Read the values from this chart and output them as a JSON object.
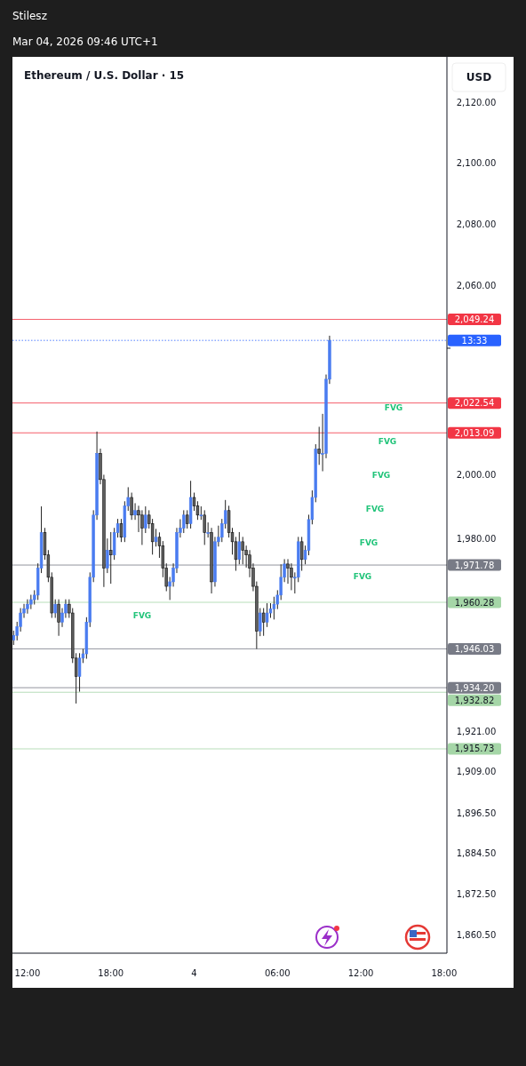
{
  "chart_data": {
    "type": "candlestick",
    "title": "Ethereum / U.S. Dollar · 15",
    "subtitle": "Mar 04, 2026 09:46 UTC+1",
    "ylabel": "USD",
    "annotations": [
      "Stilesz",
      "FVG",
      "FVG",
      "FVG",
      "FVG",
      "FVG",
      "FVG",
      "FVG",
      "13:33"
    ],
    "x": [
      "2026-03-03T11:00",
      "2026-03-03T11:15",
      "2026-03-03T11:30",
      "2026-03-03T11:45",
      "2026-03-03T12:00",
      "2026-03-03T12:15",
      "2026-03-03T12:30",
      "2026-03-03T12:45",
      "2026-03-03T13:00",
      "2026-03-03T13:15",
      "2026-03-03T13:30",
      "2026-03-03T13:45",
      "2026-03-03T14:00",
      "2026-03-03T14:15",
      "2026-03-03T14:30",
      "2026-03-03T14:45",
      "2026-03-03T15:00",
      "2026-03-03T15:15",
      "2026-03-03T15:30",
      "2026-03-03T15:45",
      "2026-03-03T16:00",
      "2026-03-03T16:15",
      "2026-03-03T16:30",
      "2026-03-03T16:45",
      "2026-03-03T17:00",
      "2026-03-03T17:15",
      "2026-03-03T17:30",
      "2026-03-03T17:45",
      "2026-03-03T18:00",
      "2026-03-03T18:15",
      "2026-03-03T18:30",
      "2026-03-03T18:45",
      "2026-03-03T19:00",
      "2026-03-03T19:15",
      "2026-03-03T19:30",
      "2026-03-03T19:45",
      "2026-03-03T20:00",
      "2026-03-03T20:15",
      "2026-03-03T20:30",
      "2026-03-03T20:45",
      "2026-03-03T21:00",
      "2026-03-03T21:15",
      "2026-03-03T21:30",
      "2026-03-03T21:45",
      "2026-03-03T22:00",
      "2026-03-03T22:15",
      "2026-03-03T22:30",
      "2026-03-03T22:45",
      "2026-03-03T23:00",
      "2026-03-03T23:15",
      "2026-03-03T23:30",
      "2026-03-03T23:45",
      "2026-03-04T00:00",
      "2026-03-04T00:15",
      "2026-03-04T00:30",
      "2026-03-04T00:45",
      "2026-03-04T01:00",
      "2026-03-04T01:15",
      "2026-03-04T01:30",
      "2026-03-04T01:45",
      "2026-03-04T02:00",
      "2026-03-04T02:15",
      "2026-03-04T02:30",
      "2026-03-04T02:45",
      "2026-03-04T03:00",
      "2026-03-04T03:15",
      "2026-03-04T03:30",
      "2026-03-04T03:45",
      "2026-03-04T04:00",
      "2026-03-04T04:15",
      "2026-03-04T04:30",
      "2026-03-04T04:45",
      "2026-03-04T05:00",
      "2026-03-04T05:15",
      "2026-03-04T05:30",
      "2026-03-04T05:45",
      "2026-03-04T06:00",
      "2026-03-04T06:15",
      "2026-03-04T06:30",
      "2026-03-04T06:45",
      "2026-03-04T07:00",
      "2026-03-04T07:15",
      "2026-03-04T07:30",
      "2026-03-04T07:45",
      "2026-03-04T08:00",
      "2026-03-04T08:15",
      "2026-03-04T08:30",
      "2026-03-04T08:45",
      "2026-03-04T09:00",
      "2026-03-04T09:15",
      "2026-03-04T09:30",
      "2026-03-04T09:45"
    ],
    "ohlc": [
      [
        1948.7,
        1951.6,
        1947.2,
        1950.1
      ],
      [
        1950.1,
        1954.3,
        1948.6,
        1952.8
      ],
      [
        1952.8,
        1958.5,
        1951.3,
        1957.0
      ],
      [
        1957.0,
        1959.8,
        1955.5,
        1958.3
      ],
      [
        1958.3,
        1961.2,
        1956.8,
        1959.7
      ],
      [
        1959.7,
        1962.6,
        1958.2,
        1961.1
      ],
      [
        1961.1,
        1964.0,
        1959.6,
        1962.5
      ],
      [
        1962.5,
        1972.3,
        1961.0,
        1970.8
      ],
      [
        1970.8,
        1990.0,
        1969.3,
        1981.8
      ],
      [
        1981.8,
        1983.3,
        1973.4,
        1974.9
      ],
      [
        1974.9,
        1976.4,
        1966.5,
        1968.0
      ],
      [
        1968.0,
        1969.5,
        1955.5,
        1957.0
      ],
      [
        1957.0,
        1961.2,
        1955.5,
        1959.7
      ],
      [
        1959.7,
        1961.2,
        1950.0,
        1954.2
      ],
      [
        1954.2,
        1958.5,
        1952.7,
        1957.0
      ],
      [
        1957.0,
        1961.2,
        1955.5,
        1959.7
      ],
      [
        1959.7,
        1961.2,
        1955.5,
        1957.0
      ],
      [
        1957.0,
        1958.5,
        1941.7,
        1943.2
      ],
      [
        1943.2,
        1944.7,
        1929.4,
        1937.6
      ],
      [
        1937.6,
        1944.7,
        1933.0,
        1943.2
      ],
      [
        1943.2,
        1946.0,
        1941.7,
        1944.5
      ],
      [
        1944.5,
        1955.7,
        1943.0,
        1954.2
      ],
      [
        1954.2,
        1969.5,
        1952.7,
        1968.0
      ],
      [
        1968.0,
        1988.8,
        1966.5,
        1987.3
      ],
      [
        1987.3,
        2013.5,
        1985.8,
        2006.6
      ],
      [
        2006.6,
        2008.1,
        1996.9,
        1998.4
      ],
      [
        1998.4,
        1999.9,
        1965.0,
        1970.8
      ],
      [
        1970.8,
        1980.0,
        1969.3,
        1976.3
      ],
      [
        1976.3,
        1982.0,
        1966.0,
        1974.9
      ],
      [
        1974.9,
        1983.3,
        1973.4,
        1981.8
      ],
      [
        1981.8,
        1986.1,
        1980.3,
        1984.6
      ],
      [
        1984.6,
        1986.1,
        1978.9,
        1980.4
      ],
      [
        1980.4,
        1991.6,
        1978.9,
        1990.1
      ],
      [
        1990.1,
        1996.0,
        1988.6,
        1992.8
      ],
      [
        1992.8,
        1994.3,
        1985.8,
        1987.3
      ],
      [
        1987.3,
        1991.0,
        1985.8,
        1988.7
      ],
      [
        1988.7,
        1990.2,
        1982.0,
        1987.3
      ],
      [
        1987.3,
        1988.8,
        1978.0,
        1983.2
      ],
      [
        1983.2,
        1990.0,
        1981.7,
        1987.3
      ],
      [
        1987.3,
        1988.8,
        1983.1,
        1984.6
      ],
      [
        1984.6,
        1986.1,
        1975.0,
        1979.0
      ],
      [
        1979.0,
        1983.0,
        1977.5,
        1980.4
      ],
      [
        1980.4,
        1981.9,
        1974.0,
        1977.7
      ],
      [
        1977.7,
        1979.2,
        1968.0,
        1970.8
      ],
      [
        1970.8,
        1972.3,
        1963.7,
        1965.2
      ],
      [
        1965.2,
        1968.1,
        1961.0,
        1966.6
      ],
      [
        1966.6,
        1972.3,
        1965.1,
        1970.8
      ],
      [
        1970.8,
        1983.3,
        1969.3,
        1981.8
      ],
      [
        1981.8,
        1986.0,
        1980.3,
        1983.2
      ],
      [
        1983.2,
        1988.8,
        1981.7,
        1987.3
      ],
      [
        1987.3,
        1988.8,
        1983.1,
        1984.6
      ],
      [
        1984.6,
        1998.0,
        1983.1,
        1992.8
      ],
      [
        1992.8,
        1994.3,
        1988.6,
        1990.1
      ],
      [
        1990.1,
        1991.6,
        1985.8,
        1987.3
      ],
      [
        1987.3,
        1990.0,
        1985.8,
        1987.3
      ],
      [
        1987.3,
        1988.8,
        1978.0,
        1981.8
      ],
      [
        1981.8,
        1985.0,
        1980.3,
        1981.8
      ],
      [
        1981.8,
        1983.3,
        1963.0,
        1966.6
      ],
      [
        1966.6,
        1980.5,
        1965.1,
        1979.0
      ],
      [
        1979.0,
        1984.0,
        1977.5,
        1980.4
      ],
      [
        1980.4,
        1986.1,
        1978.9,
        1984.6
      ],
      [
        1984.6,
        1992.0,
        1983.1,
        1988.7
      ],
      [
        1988.7,
        1990.2,
        1980.3,
        1981.8
      ],
      [
        1981.8,
        1983.3,
        1975.0,
        1979.0
      ],
      [
        1979.0,
        1980.5,
        1970.0,
        1973.5
      ],
      [
        1973.5,
        1982.0,
        1972.0,
        1979.0
      ],
      [
        1979.0,
        1980.5,
        1972.0,
        1976.3
      ],
      [
        1976.3,
        1977.8,
        1971.0,
        1974.9
      ],
      [
        1974.9,
        1976.4,
        1968.0,
        1970.8
      ],
      [
        1970.8,
        1972.3,
        1963.7,
        1965.2
      ],
      [
        1965.2,
        1966.7,
        1946.0,
        1951.4
      ],
      [
        1951.4,
        1958.5,
        1949.9,
        1957.0
      ],
      [
        1957.0,
        1958.5,
        1950.0,
        1954.2
      ],
      [
        1954.2,
        1960.0,
        1952.7,
        1957.0
      ],
      [
        1957.0,
        1960.0,
        1955.5,
        1958.3
      ],
      [
        1958.3,
        1962.0,
        1955.0,
        1959.7
      ],
      [
        1959.7,
        1964.0,
        1958.2,
        1962.5
      ],
      [
        1962.5,
        1972.0,
        1961.0,
        1968.0
      ],
      [
        1968.0,
        1973.6,
        1966.5,
        1972.1
      ],
      [
        1972.1,
        1973.6,
        1966.0,
        1970.8
      ],
      [
        1970.8,
        1972.3,
        1964.0,
        1968.0
      ],
      [
        1968.0,
        1969.5,
        1963.0,
        1968.0
      ],
      [
        1968.0,
        1980.5,
        1966.5,
        1979.0
      ],
      [
        1979.0,
        1980.5,
        1970.0,
        1973.5
      ],
      [
        1973.5,
        1977.8,
        1972.0,
        1976.3
      ],
      [
        1976.3,
        1987.4,
        1974.8,
        1985.9
      ],
      [
        1985.9,
        1995.0,
        1984.4,
        1992.8
      ],
      [
        1992.8,
        2009.5,
        1991.3,
        2008.0
      ],
      [
        2008.0,
        2015.0,
        2003.0,
        2006.6
      ],
      [
        2006.6,
        2019.1,
        2001.0,
        2006.6
      ],
      [
        2006.6,
        2031.6,
        2005.1,
        2030.1
      ],
      [
        2030.1,
        2044.0,
        2028.6,
        2042.5
      ]
    ],
    "xlim": [
      "2026-03-03T10:55",
      "2026-03-04T18:12"
    ],
    "xticks": [
      {
        "value": "2026-03-03T12:00",
        "label": "12:00"
      },
      {
        "value": "2026-03-03T18:00",
        "label": "18:00"
      },
      {
        "value": "2026-03-04T00:00",
        "label": "4"
      },
      {
        "value": "2026-03-04T06:00",
        "label": "06:00"
      },
      {
        "value": "2026-03-04T12:00",
        "label": "12:00"
      },
      {
        "value": "2026-03-04T18:00",
        "label": "18:00"
      }
    ],
    "ylim": [
      1855.3,
      2135.4
    ],
    "yticks": [
      {
        "value": 2120,
        "label": "2,120.00"
      },
      {
        "value": 2100,
        "label": "2,100.00"
      },
      {
        "value": 2080,
        "label": "2,080.00"
      },
      {
        "value": 2060,
        "label": "2,060.00"
      },
      {
        "value": 2040,
        "label": null
      },
      {
        "value": 2000,
        "label": "2,000.00"
      },
      {
        "value": 1980,
        "label": "1,980.00"
      },
      {
        "value": 1921,
        "label": "1,921.00"
      },
      {
        "value": 1909,
        "label": "1,909.00"
      },
      {
        "value": 1896.5,
        "label": "1,896.50"
      },
      {
        "value": 1884.5,
        "label": "1,884.50"
      },
      {
        "value": 1872.5,
        "label": "1,872.50"
      },
      {
        "value": 1860.5,
        "label": "1,860.50"
      }
    ],
    "log": "y",
    "ref_lines": [
      {
        "axis": "y",
        "value": 2049.24,
        "label": "2,049.24",
        "color": "#f23645",
        "line_style": "solid"
      },
      {
        "axis": "y",
        "value": 2042.5,
        "color": "#2962ff",
        "line_style": "dotted"
      },
      {
        "axis": "y",
        "value": 2022.54,
        "label": "2,022.54",
        "color": "#f23645",
        "line_style": "solid"
      },
      {
        "axis": "y",
        "value": 2013.09,
        "label": "2,013.09",
        "color": "#f23645",
        "line_style": "solid"
      },
      {
        "axis": "y",
        "value": 1971.78,
        "label": "1,971.78",
        "color": "#787b86",
        "line_style": "solid"
      },
      {
        "axis": "y",
        "value": 1960.28,
        "label": "1,960.28",
        "color": "#a5d6a7",
        "line_style": "solid"
      },
      {
        "axis": "y",
        "value": 1946.03,
        "label": "1,946.03",
        "color": "#787b86",
        "line_style": "solid"
      },
      {
        "axis": "y",
        "value": 1934.2,
        "label": "1,934.20",
        "color": "#787b86",
        "line_style": "solid"
      },
      {
        "axis": "y",
        "value": 1932.82,
        "label": "1,932.82",
        "color": "#a5d6a7",
        "line_style": "solid"
      },
      {
        "axis": "y",
        "value": 1915.73,
        "label": "1,915.73",
        "color": "#a5d6a7",
        "line_style": "solid"
      }
    ]
  }
}
